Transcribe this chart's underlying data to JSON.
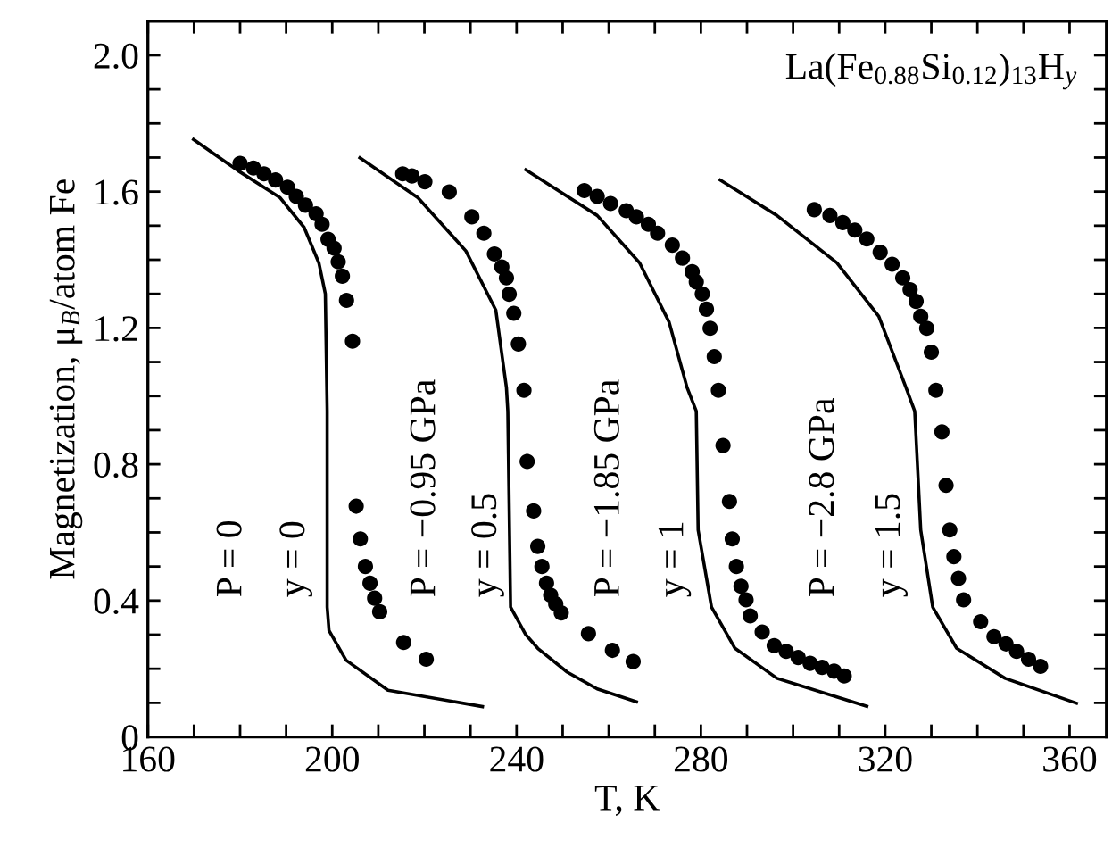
{
  "chart_data": {
    "type": "scatter",
    "xlabel": "T, K",
    "ylabel": "Magnetization, μ$_{B}$/atom Fe",
    "xlim": [
      160,
      368
    ],
    "ylim": [
      0,
      2.1
    ],
    "xticks": [
      160,
      {
        "value": 170,
        "label": null
      },
      {
        "value": 180,
        "label": null
      },
      {
        "value": 190,
        "label": null
      },
      200,
      {
        "value": 210,
        "label": null
      },
      {
        "value": 220,
        "label": null
      },
      {
        "value": 230,
        "label": null
      },
      240,
      {
        "value": 250,
        "label": null
      },
      {
        "value": 260,
        "label": null
      },
      {
        "value": 270,
        "label": null
      },
      280,
      {
        "value": 290,
        "label": null
      },
      {
        "value": 300,
        "label": null
      },
      {
        "value": 310,
        "label": null
      },
      320,
      {
        "value": 330,
        "label": null
      },
      {
        "value": 340,
        "label": null
      },
      {
        "value": 350,
        "label": null
      },
      360
    ],
    "yticks": [
      0,
      {
        "value": 0.1,
        "label": null
      },
      {
        "value": 0.2,
        "label": null
      },
      {
        "value": 0.3,
        "label": null
      },
      0.4,
      {
        "value": 0.5,
        "label": null
      },
      {
        "value": 0.6,
        "label": null
      },
      {
        "value": 0.7,
        "label": null
      },
      0.8,
      {
        "value": 0.9,
        "label": null
      },
      {
        "value": 1.0,
        "label": null
      },
      {
        "value": 1.1,
        "label": null
      },
      1.2,
      {
        "value": 1.3,
        "label": null
      },
      {
        "value": 1.4,
        "label": null
      },
      {
        "value": 1.5,
        "label": null
      },
      1.6,
      {
        "value": 1.7,
        "label": null
      },
      {
        "value": 1.8,
        "label": null
      },
      {
        "value": 1.9,
        "label": null
      },
      {
        "value": 2.0,
        "label": "2.0"
      }
    ],
    "grid": false,
    "legend": false,
    "series": [
      {
        "color": "#000000",
        "marker": "circle",
        "x": [
          180.0,
          182.9,
          185.2,
          187.7,
          190.3,
          192.2,
          194.2,
          196.5,
          197.8,
          199.1,
          200.4,
          201.3,
          202.2,
          203.1,
          204.4,
          205.2,
          206.1,
          207.2,
          208.2,
          209.2,
          210.3,
          215.5,
          220.4
        ],
        "values": [
          1.683,
          1.669,
          1.652,
          1.634,
          1.613,
          1.586,
          1.56,
          1.535,
          1.504,
          1.46,
          1.434,
          1.394,
          1.352,
          1.281,
          1.161,
          0.677,
          0.581,
          0.5,
          0.451,
          0.407,
          0.367,
          0.277,
          0.228
        ]
      },
      {
        "color": "#000000",
        "marker": "circle",
        "x": [
          215.3,
          217.3,
          220.1,
          225.4,
          230.3,
          232.9,
          235.2,
          236.8,
          237.8,
          238.4,
          239.4,
          240.4,
          241.6,
          242.3,
          243.7,
          244.6,
          245.5,
          246.5,
          247.4,
          248.5,
          249.7,
          255.6,
          260.8,
          265.3
        ],
        "values": [
          1.652,
          1.646,
          1.629,
          1.599,
          1.526,
          1.478,
          1.417,
          1.379,
          1.347,
          1.299,
          1.243,
          1.153,
          1.017,
          0.808,
          0.663,
          0.559,
          0.5,
          0.451,
          0.416,
          0.39,
          0.364,
          0.303,
          0.254,
          0.221
        ]
      },
      {
        "color": "#000000",
        "marker": "circle",
        "x": [
          254.7,
          257.5,
          260.4,
          263.8,
          266.0,
          268.6,
          270.6,
          273.8,
          276.0,
          278.1,
          279.0,
          280.3,
          281.2,
          282.0,
          282.9,
          283.8,
          284.8,
          286.2,
          286.8,
          287.7,
          288.7,
          289.8,
          290.7,
          293.3,
          295.9,
          298.5,
          301.1,
          303.7,
          306.3,
          308.9,
          311.1
        ],
        "values": [
          1.603,
          1.586,
          1.565,
          1.544,
          1.526,
          1.504,
          1.478,
          1.443,
          1.405,
          1.365,
          1.335,
          1.3,
          1.255,
          1.199,
          1.116,
          1.017,
          0.855,
          0.691,
          0.581,
          0.5,
          0.442,
          0.402,
          0.355,
          0.308,
          0.268,
          0.251,
          0.233,
          0.216,
          0.204,
          0.193,
          0.179
        ]
      },
      {
        "color": "#000000",
        "marker": "circle",
        "x": [
          304.6,
          308.0,
          310.8,
          313.4,
          316.0,
          318.9,
          321.5,
          323.8,
          325.4,
          326.7,
          327.7,
          329.0,
          330.0,
          331.0,
          332.3,
          333.2,
          334.0,
          334.9,
          335.9,
          337.0,
          340.7,
          343.6,
          346.2,
          348.5,
          351.1,
          353.7
        ],
        "values": [
          1.547,
          1.53,
          1.509,
          1.487,
          1.461,
          1.422,
          1.387,
          1.347,
          1.312,
          1.278,
          1.234,
          1.199,
          1.129,
          1.017,
          0.895,
          0.738,
          0.607,
          0.529,
          0.465,
          0.402,
          0.338,
          0.294,
          0.273,
          0.251,
          0.228,
          0.207
        ]
      },
      {
        "type": "line",
        "color": "#000000",
        "marker": "none",
        "line_style": "solid",
        "x": [
          169.9,
          179.6,
          188.7,
          193.9,
          197.1,
          198.5,
          198.9,
          198.9,
          199.3,
          203.0,
          212.1,
          232.6
        ],
        "values": [
          1.753,
          1.661,
          1.582,
          1.495,
          1.391,
          1.3,
          0.956,
          0.381,
          0.312,
          0.225,
          0.137,
          0.089
        ]
      },
      {
        "type": "line",
        "color": "#000000",
        "marker": "none",
        "line_style": "solid",
        "x": [
          206.0,
          218.6,
          229.0,
          235.5,
          237.8,
          238.1,
          238.7,
          242.0,
          244.6,
          251.0,
          257.5,
          266.0
        ],
        "values": [
          1.699,
          1.582,
          1.426,
          1.252,
          1.025,
          0.956,
          0.381,
          0.3,
          0.26,
          0.19,
          0.141,
          0.103
        ]
      },
      {
        "type": "line",
        "color": "#000000",
        "marker": "none",
        "line_style": "solid",
        "x": [
          242.0,
          257.5,
          266.7,
          273.1,
          277.0,
          279.0,
          279.4,
          282.3,
          287.4,
          296.5,
          316.0
        ],
        "values": [
          1.664,
          1.53,
          1.391,
          1.217,
          1.025,
          0.956,
          0.607,
          0.381,
          0.26,
          0.172,
          0.09
        ]
      },
      {
        "type": "line",
        "color": "#000000",
        "marker": "none",
        "line_style": "solid",
        "x": [
          284.2,
          296.5,
          309.5,
          318.6,
          324.5,
          326.4,
          327.7,
          330.3,
          335.5,
          346.0,
          361.5
        ],
        "values": [
          1.634,
          1.53,
          1.391,
          1.234,
          1.025,
          0.956,
          0.607,
          0.381,
          0.26,
          0.172,
          0.099
        ]
      }
    ],
    "annotations": [
      "La(Fe$_{0.88}$Si$_{0.12}$)$_{13}$H$_{y}$",
      "P = 0",
      "y = 0",
      "P = −0.95 GPa",
      "y = 0.5",
      "P = −1.85 GPa",
      "y = 1",
      "P = −2.8 GPa",
      "y = 1.5"
    ]
  }
}
